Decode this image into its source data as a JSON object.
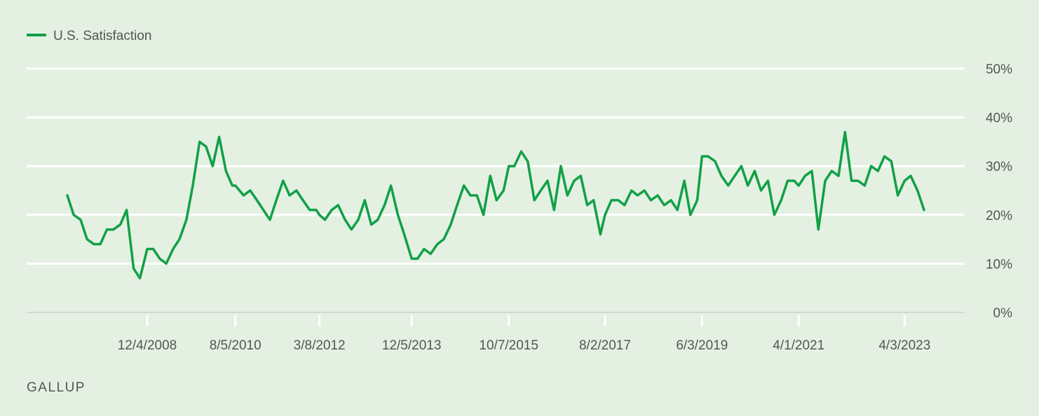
{
  "brand": "GALLUP",
  "colors": {
    "series": "#12a047",
    "background": "#e4f1e2",
    "grid": "#ffffff",
    "axis": "#d6d6d6",
    "text": "#555555"
  },
  "chart_data": {
    "type": "line",
    "title": "",
    "xlabel": "",
    "ylabel": "",
    "legend_position": "top-left",
    "grid": true,
    "ylim": [
      0,
      50
    ],
    "yticks": [
      0,
      10,
      20,
      30,
      40,
      50
    ],
    "ytick_labels": [
      "0%",
      "10%",
      "20%",
      "30%",
      "40%",
      "50%"
    ],
    "xlim": [
      "2007-03-01",
      "2023-07-01"
    ],
    "xticks": [
      "2008-12-04",
      "2010-08-05",
      "2012-03-08",
      "2013-12-05",
      "2015-10-07",
      "2017-08-02",
      "2019-06-03",
      "2021-04-01",
      "2023-04-03"
    ],
    "xtick_labels": [
      "12/4/2008",
      "8/5/2010",
      "3/8/2012",
      "12/5/2013",
      "10/7/2015",
      "8/2/2017",
      "6/3/2019",
      "4/1/2021",
      "4/3/2023"
    ],
    "series": [
      {
        "name": "U.S. Satisfaction",
        "color": "#12a047",
        "points": [
          [
            "2007-06-01",
            24
          ],
          [
            "2007-07-15",
            20
          ],
          [
            "2007-09-01",
            19
          ],
          [
            "2007-10-15",
            15
          ],
          [
            "2007-12-01",
            14
          ],
          [
            "2008-01-15",
            14
          ],
          [
            "2008-03-01",
            17
          ],
          [
            "2008-04-15",
            17
          ],
          [
            "2008-06-01",
            18
          ],
          [
            "2008-07-15",
            21
          ],
          [
            "2008-09-01",
            9
          ],
          [
            "2008-10-15",
            7
          ],
          [
            "2008-12-04",
            13
          ],
          [
            "2009-01-15",
            13
          ],
          [
            "2009-03-01",
            11
          ],
          [
            "2009-04-15",
            10
          ],
          [
            "2009-06-01",
            13
          ],
          [
            "2009-07-15",
            15
          ],
          [
            "2009-09-01",
            19
          ],
          [
            "2009-10-15",
            26
          ],
          [
            "2009-12-01",
            35
          ],
          [
            "2010-01-15",
            34
          ],
          [
            "2010-03-01",
            30
          ],
          [
            "2010-04-15",
            36
          ],
          [
            "2010-06-01",
            29
          ],
          [
            "2010-07-15",
            26
          ],
          [
            "2010-08-05",
            26
          ],
          [
            "2010-10-01",
            24
          ],
          [
            "2010-11-15",
            25
          ],
          [
            "2011-01-01",
            23
          ],
          [
            "2011-02-15",
            21
          ],
          [
            "2011-04-01",
            19
          ],
          [
            "2011-05-15",
            23
          ],
          [
            "2011-07-01",
            27
          ],
          [
            "2011-08-15",
            24
          ],
          [
            "2011-10-01",
            25
          ],
          [
            "2011-11-15",
            23
          ],
          [
            "2012-01-01",
            21
          ],
          [
            "2012-02-15",
            21
          ],
          [
            "2012-03-08",
            20
          ],
          [
            "2012-04-15",
            19
          ],
          [
            "2012-06-01",
            21
          ],
          [
            "2012-07-15",
            22
          ],
          [
            "2012-09-01",
            19
          ],
          [
            "2012-10-15",
            17
          ],
          [
            "2012-12-01",
            19
          ],
          [
            "2013-01-15",
            23
          ],
          [
            "2013-03-01",
            18
          ],
          [
            "2013-04-15",
            19
          ],
          [
            "2013-06-01",
            22
          ],
          [
            "2013-07-15",
            26
          ],
          [
            "2013-09-01",
            20
          ],
          [
            "2013-10-15",
            16
          ],
          [
            "2013-12-05",
            11
          ],
          [
            "2014-01-15",
            11
          ],
          [
            "2014-03-01",
            13
          ],
          [
            "2014-04-15",
            12
          ],
          [
            "2014-06-01",
            14
          ],
          [
            "2014-07-15",
            15
          ],
          [
            "2014-09-01",
            18
          ],
          [
            "2014-10-15",
            22
          ],
          [
            "2014-12-01",
            26
          ],
          [
            "2015-01-15",
            24
          ],
          [
            "2015-03-01",
            24
          ],
          [
            "2015-04-15",
            20
          ],
          [
            "2015-06-01",
            28
          ],
          [
            "2015-07-15",
            23
          ],
          [
            "2015-09-01",
            25
          ],
          [
            "2015-10-07",
            30
          ],
          [
            "2015-11-15",
            30
          ],
          [
            "2016-01-01",
            33
          ],
          [
            "2016-02-15",
            31
          ],
          [
            "2016-04-01",
            23
          ],
          [
            "2016-05-15",
            25
          ],
          [
            "2016-07-01",
            27
          ],
          [
            "2016-08-15",
            21
          ],
          [
            "2016-10-01",
            30
          ],
          [
            "2016-11-15",
            24
          ],
          [
            "2017-01-01",
            27
          ],
          [
            "2017-02-15",
            28
          ],
          [
            "2017-04-01",
            22
          ],
          [
            "2017-05-15",
            23
          ],
          [
            "2017-07-01",
            16
          ],
          [
            "2017-08-02",
            20
          ],
          [
            "2017-09-15",
            23
          ],
          [
            "2017-11-01",
            23
          ],
          [
            "2017-12-15",
            22
          ],
          [
            "2018-02-01",
            25
          ],
          [
            "2018-03-15",
            24
          ],
          [
            "2018-05-01",
            25
          ],
          [
            "2018-06-15",
            23
          ],
          [
            "2018-08-01",
            24
          ],
          [
            "2018-09-15",
            22
          ],
          [
            "2018-11-01",
            23
          ],
          [
            "2018-12-15",
            21
          ],
          [
            "2019-02-01",
            27
          ],
          [
            "2019-03-15",
            20
          ],
          [
            "2019-05-01",
            23
          ],
          [
            "2019-06-03",
            32
          ],
          [
            "2019-07-15",
            32
          ],
          [
            "2019-09-01",
            31
          ],
          [
            "2019-10-15",
            28
          ],
          [
            "2019-12-01",
            26
          ],
          [
            "2020-01-15",
            28
          ],
          [
            "2020-03-01",
            30
          ],
          [
            "2020-04-15",
            26
          ],
          [
            "2020-06-01",
            29
          ],
          [
            "2020-07-15",
            25
          ],
          [
            "2020-09-01",
            27
          ],
          [
            "2020-10-15",
            20
          ],
          [
            "2020-12-01",
            23
          ],
          [
            "2021-01-15",
            27
          ],
          [
            "2021-03-01",
            27
          ],
          [
            "2021-04-01",
            26
          ],
          [
            "2021-05-15",
            28
          ],
          [
            "2021-07-01",
            29
          ],
          [
            "2021-08-15",
            17
          ],
          [
            "2021-10-01",
            27
          ],
          [
            "2021-11-15",
            29
          ],
          [
            "2022-01-01",
            28
          ],
          [
            "2022-02-15",
            37
          ],
          [
            "2022-04-01",
            27
          ],
          [
            "2022-05-15",
            27
          ],
          [
            "2022-07-01",
            26
          ],
          [
            "2022-08-15",
            30
          ],
          [
            "2022-10-01",
            29
          ],
          [
            "2022-11-15",
            32
          ],
          [
            "2023-01-01",
            31
          ],
          [
            "2023-02-15",
            24
          ],
          [
            "2023-04-03",
            27
          ],
          [
            "2023-05-15",
            28
          ],
          [
            "2023-07-01",
            25
          ],
          [
            "2023-08-15",
            21
          ]
        ]
      }
    ]
  }
}
